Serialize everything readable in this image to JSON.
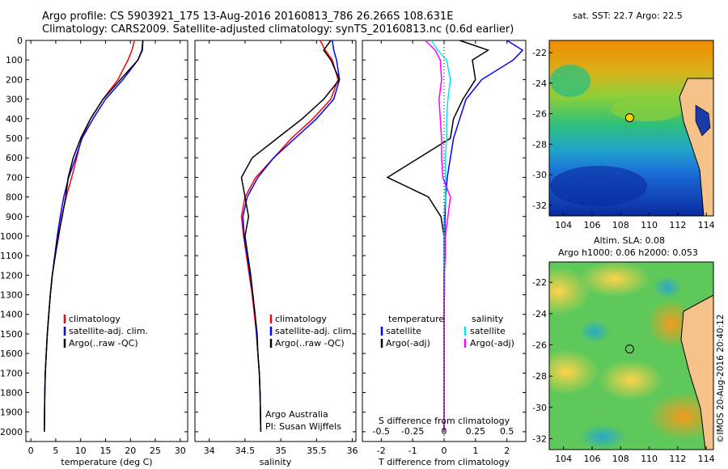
{
  "header": {
    "line1": "Argo profile: CS 5903921_175 13-Aug-2016 20160813_786 26.266S 108.631E",
    "line2": "Climatology: CARS2009. Satellite-adjusted climatology: synTS_20160813.nc (0.6d earlier)"
  },
  "colors": {
    "climatology": "#ff0000",
    "satellite": "#0000ff",
    "argo": "#000000",
    "salinity_satellite": "#00e5ee",
    "salinity_argo": "#ff00ff"
  },
  "depth_axis": {
    "min": 0,
    "max": 2050,
    "ticks": [
      0,
      100,
      200,
      300,
      400,
      500,
      600,
      700,
      800,
      900,
      1000,
      1100,
      1200,
      1300,
      1400,
      1500,
      1600,
      1700,
      1800,
      1900,
      2000
    ]
  },
  "chart_data": [
    {
      "type": "line",
      "id": "temperature",
      "xlabel": "temperature (deg C)",
      "xlim": [
        -1,
        31.5
      ],
      "xticks": [
        "0",
        "5",
        "10",
        "15",
        "20",
        "25",
        "30"
      ],
      "xtick_values": [
        0,
        5,
        10,
        15,
        20,
        25,
        30
      ],
      "ylim": [
        0,
        2050
      ],
      "legend": [
        "climatology",
        "satellite-adj. clim.",
        "Argo(..raw -QC)"
      ],
      "series": [
        {
          "name": "climatology",
          "color_key": "climatology",
          "x": [
            20.8,
            20.3,
            19.5,
            17.5,
            14.5,
            12,
            10.2,
            9.2,
            8.2,
            7.1,
            6.2,
            5.6,
            4.9,
            4.3,
            3.9,
            3.6,
            3.3,
            3.1,
            2.9,
            2.8,
            2.7
          ],
          "y": [
            0,
            50,
            100,
            200,
            300,
            400,
            500,
            600,
            700,
            800,
            900,
            1000,
            1100,
            1200,
            1300,
            1400,
            1500,
            1600,
            1700,
            1800,
            2000
          ]
        },
        {
          "name": "satellite-adj. clim.",
          "color_key": "satellite",
          "x": [
            22.5,
            22.3,
            21.5,
            18.5,
            15,
            12.5,
            10.3,
            9.0,
            7.6,
            6.6,
            5.9,
            5.3,
            4.8,
            4.3,
            3.9,
            3.6,
            3.3,
            3.1,
            2.9,
            2.8,
            2.7
          ],
          "y": [
            0,
            50,
            100,
            200,
            300,
            400,
            500,
            600,
            700,
            800,
            900,
            1000,
            1100,
            1200,
            1300,
            1400,
            1500,
            1600,
            1700,
            1800,
            2000
          ]
        },
        {
          "name": "Argo(..raw -QC)",
          "color_key": "argo",
          "x": [
            22.5,
            22.4,
            21.5,
            18.0,
            14.5,
            12.0,
            10.0,
            8.5,
            7.5,
            7.0,
            6.3,
            5.5,
            4.9,
            4.3,
            3.9,
            3.6,
            3.3,
            3.1,
            2.9,
            2.8,
            2.7
          ],
          "y": [
            0,
            50,
            100,
            200,
            300,
            400,
            500,
            600,
            700,
            800,
            900,
            1000,
            1100,
            1200,
            1300,
            1400,
            1500,
            1600,
            1700,
            1800,
            2000
          ]
        }
      ]
    },
    {
      "type": "line",
      "id": "salinity",
      "xlabel": "salinity",
      "xlim": [
        33.8,
        36.05
      ],
      "xticks": [
        "34",
        "34.5",
        "35",
        "35.5",
        "36"
      ],
      "xtick_values": [
        34,
        34.5,
        35,
        35.5,
        36
      ],
      "ylim": [
        0,
        2050
      ],
      "legend": [
        "climatology",
        "satellite-adj. clim.",
        "Argo(..raw -QC)"
      ],
      "annotation": [
        "Argo Australia",
        "PI: Susan Wijffels"
      ],
      "series": [
        {
          "name": "climatology",
          "color_key": "climatology",
          "x": [
            35.55,
            35.62,
            35.72,
            35.8,
            35.7,
            35.45,
            35.15,
            34.9,
            34.65,
            34.5,
            34.45,
            34.48,
            34.52,
            34.56,
            34.6,
            34.63,
            34.66,
            34.68,
            34.7,
            34.71,
            34.72
          ],
          "y": [
            0,
            50,
            100,
            200,
            300,
            400,
            500,
            600,
            700,
            800,
            900,
            1000,
            1100,
            1200,
            1300,
            1400,
            1500,
            1600,
            1700,
            1800,
            2000
          ]
        },
        {
          "name": "satellite-adj. clim.",
          "color_key": "satellite",
          "x": [
            35.72,
            35.74,
            35.78,
            35.82,
            35.74,
            35.5,
            35.2,
            34.9,
            34.68,
            34.53,
            34.47,
            34.49,
            34.53,
            34.57,
            34.61,
            34.64,
            34.66,
            34.68,
            34.7,
            34.71,
            34.72
          ],
          "y": [
            0,
            50,
            100,
            200,
            300,
            400,
            500,
            600,
            700,
            800,
            900,
            1000,
            1100,
            1200,
            1300,
            1400,
            1500,
            1600,
            1700,
            1800,
            2000
          ]
        },
        {
          "name": "Argo(..raw -QC)",
          "color_key": "argo",
          "x": [
            35.7,
            35.6,
            35.7,
            35.82,
            35.6,
            35.3,
            34.95,
            34.6,
            34.45,
            34.5,
            34.55,
            34.5,
            34.54,
            34.58,
            34.61,
            34.64,
            34.67,
            34.68,
            34.7,
            34.71,
            34.72
          ],
          "y": [
            0,
            50,
            100,
            200,
            300,
            400,
            500,
            600,
            700,
            800,
            900,
            1000,
            1100,
            1200,
            1300,
            1400,
            1500,
            1600,
            1700,
            1800,
            2000
          ]
        }
      ]
    },
    {
      "type": "line",
      "id": "differences",
      "xlabel": "T difference from climatology",
      "x2label": "S difference from climatology",
      "xlim": [
        -2.6,
        2.6
      ],
      "xticks": [
        "-2",
        "-1",
        "0",
        "1",
        "2"
      ],
      "xtick_values": [
        -2,
        -1,
        0,
        1,
        2
      ],
      "s_xticks": [
        "-0.5",
        "-0.25",
        "0",
        "0.25",
        "0.5"
      ],
      "s_xtick_values": [
        -0.5,
        -0.25,
        0,
        0.25,
        0.5
      ],
      "s_scale": 4,
      "ylim": [
        0,
        2050
      ],
      "legend_temperature": [
        "temperature",
        "satellite",
        "Argo(-adj)"
      ],
      "legend_salinity": [
        "salinity",
        "satellite",
        "Argo(-adj)"
      ],
      "series": [
        {
          "name": "T satellite",
          "color_key": "satellite",
          "x": [
            2.0,
            2.5,
            2.2,
            1.2,
            0.7,
            0.5,
            0.3,
            0.2,
            0.1,
            0.05,
            0.03,
            0.02,
            0.02,
            0.01,
            0.01,
            0,
            0,
            0,
            0,
            0,
            0
          ],
          "y": [
            0,
            50,
            100,
            200,
            300,
            400,
            500,
            600,
            700,
            800,
            900,
            1000,
            1100,
            1200,
            1300,
            1400,
            1500,
            1600,
            1700,
            1800,
            2000
          ]
        },
        {
          "name": "T Argo(-adj)",
          "color_key": "argo",
          "x": [
            0.5,
            1.4,
            0.9,
            1.0,
            0.6,
            0.3,
            0.2,
            -0.8,
            -1.8,
            -0.5,
            -0.1,
            0,
            0,
            0,
            0,
            0,
            0,
            0,
            0,
            0,
            0
          ],
          "y": [
            0,
            50,
            100,
            200,
            300,
            400,
            500,
            600,
            700,
            800,
            900,
            1000,
            1100,
            1200,
            1300,
            1400,
            1500,
            1600,
            1700,
            1800,
            2000
          ]
        },
        {
          "name": "S satellite",
          "color_key": "salinity_satellite",
          "x": [
            -0.1,
            -0.05,
            0.02,
            0.05,
            0.03,
            0.02,
            0.02,
            0.01,
            0.01,
            0.01,
            0,
            0,
            0,
            0,
            0,
            0,
            0,
            0,
            0,
            0,
            0
          ],
          "y": [
            0,
            50,
            100,
            200,
            300,
            400,
            500,
            600,
            700,
            800,
            900,
            1000,
            1100,
            1200,
            1300,
            1400,
            1500,
            1600,
            1700,
            1800,
            2000
          ]
        },
        {
          "name": "S Argo(-adj)",
          "color_key": "salinity_argo",
          "x": [
            -0.15,
            -0.07,
            -0.03,
            -0.02,
            -0.04,
            -0.03,
            -0.02,
            -0.02,
            -0.01,
            0.05,
            0.03,
            0.01,
            0.01,
            0,
            0,
            0,
            0,
            0,
            0,
            0,
            0
          ],
          "y": [
            0,
            50,
            100,
            200,
            300,
            400,
            500,
            600,
            700,
            800,
            900,
            1000,
            1100,
            1200,
            1300,
            1400,
            1500,
            1600,
            1700,
            1800,
            2000
          ]
        }
      ]
    },
    {
      "type": "heatmap",
      "id": "sst-map",
      "title": "sat. SST: 22.7 Argo: 22.5",
      "xticks": [
        "104",
        "106",
        "108",
        "110",
        "112",
        "114"
      ],
      "xtick_values": [
        104,
        106,
        108,
        110,
        112,
        114
      ],
      "yticks": [
        "-22",
        "-24",
        "-26",
        "-28",
        "-30",
        "-32"
      ],
      "ytick_values": [
        -22,
        -24,
        -26,
        -28,
        -30,
        -32
      ],
      "xlim": [
        103,
        114.5
      ],
      "ylim": [
        -32.7,
        -21.2
      ],
      "argo_position": {
        "lon": 108.631,
        "lat": -26.266
      }
    },
    {
      "type": "heatmap",
      "id": "sla-map",
      "title": "Altim. SLA: 0.08",
      "subtitle": "Argo h1000: 0.06 h2000: 0.053",
      "xticks": [
        "104",
        "106",
        "108",
        "110",
        "112",
        "114"
      ],
      "xtick_values": [
        104,
        106,
        108,
        110,
        112,
        114
      ],
      "yticks": [
        "-22",
        "-24",
        "-26",
        "-28",
        "-30",
        "-32"
      ],
      "ytick_values": [
        -22,
        -24,
        -26,
        -28,
        -30,
        -32
      ],
      "xlim": [
        103,
        114.5
      ],
      "ylim": [
        -32.7,
        -20.7
      ],
      "argo_position": {
        "lon": 108.631,
        "lat": -26.266
      }
    }
  ],
  "credit": "©IMOS 20-Aug-2016 20:40:12"
}
